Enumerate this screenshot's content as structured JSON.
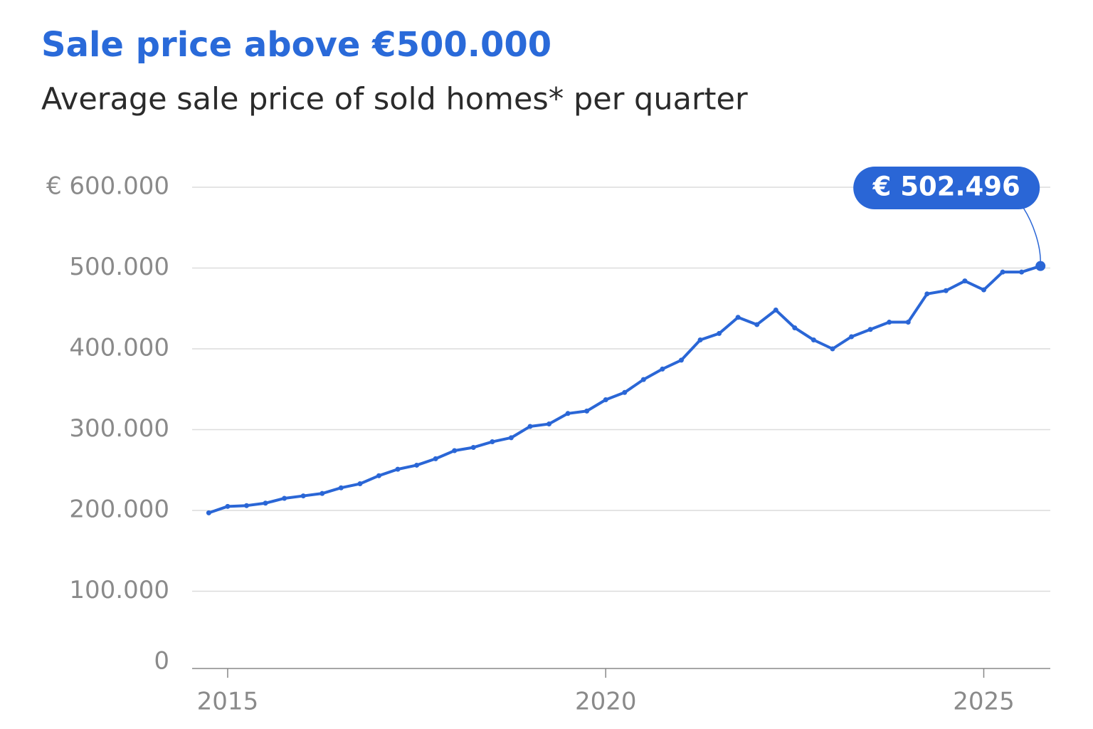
{
  "chart_data": {
    "type": "line",
    "title": "Sale price above €500.000",
    "subtitle": "Average sale price of sold homes* per quarter",
    "x": [
      2014.75,
      2015,
      2015.25,
      2015.5,
      2015.75,
      2016,
      2016.25,
      2016.5,
      2016.75,
      2017,
      2017.25,
      2017.5,
      2017.75,
      2018,
      2018.25,
      2018.5,
      2018.75,
      2019,
      2019.25,
      2019.5,
      2019.75,
      2020,
      2020.25,
      2020.5,
      2020.75,
      2021,
      2021.25,
      2021.5,
      2021.75,
      2022,
      2022.25,
      2022.5,
      2022.75,
      2023,
      2023.25,
      2023.5,
      2023.75,
      2024,
      2024.25,
      2024.5,
      2024.75,
      2025,
      2025.25,
      2025.5,
      2025.75
    ],
    "series": [
      {
        "name": "Average sale price",
        "color": "#2a66d6",
        "values": [
          197000,
          205000,
          206000,
          209000,
          215000,
          218000,
          221000,
          228000,
          233000,
          243000,
          251000,
          256000,
          264000,
          274000,
          278000,
          285000,
          290000,
          304000,
          307000,
          320000,
          323000,
          337000,
          346000,
          362000,
          375000,
          386000,
          411000,
          419000,
          439000,
          430000,
          448000,
          426000,
          411000,
          400000,
          415000,
          424000,
          433000,
          433000,
          468000,
          472000,
          484000,
          473000,
          495000,
          495000,
          502496
        ],
        "value_labels": [
          null,
          null,
          null,
          null,
          null,
          null,
          null,
          null,
          null,
          null,
          null,
          null,
          null,
          null,
          null,
          null,
          null,
          null,
          null,
          null,
          null,
          null,
          null,
          null,
          null,
          null,
          null,
          null,
          null,
          null,
          null,
          null,
          null,
          null,
          null,
          null,
          null,
          null,
          null,
          null,
          null,
          null,
          null,
          null,
          "€ 502.496"
        ]
      }
    ],
    "xlim": [
      2014.53,
      2025.88
    ],
    "xticks": [
      2015,
      2020,
      2025
    ],
    "ylim": [
      0,
      600000
    ],
    "yticks": [
      {
        "value": 0,
        "label": "0"
      },
      {
        "value": 100000,
        "label": "100.000"
      },
      {
        "value": 200000,
        "label": "200.000"
      },
      {
        "value": 300000,
        "label": "300.000"
      },
      {
        "value": 400000,
        "label": "400.000"
      },
      {
        "value": 500000,
        "label": "500.000"
      },
      {
        "value": 600000,
        "label": "€ 600.000"
      }
    ],
    "grid": true
  }
}
